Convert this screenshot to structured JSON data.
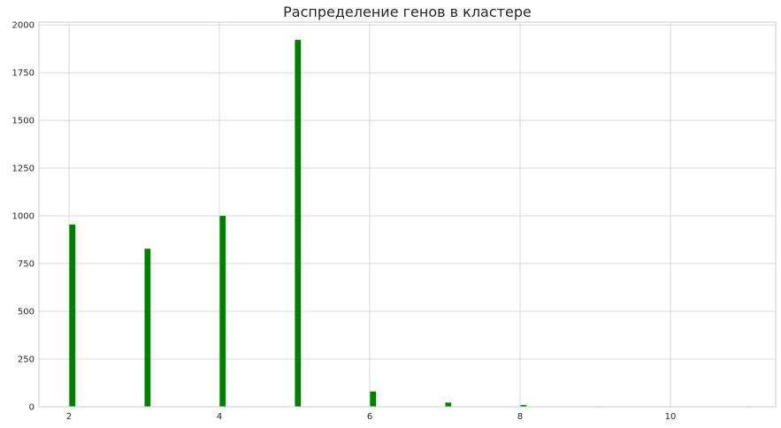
{
  "chart_data": {
    "type": "bar",
    "title": "Распределение генов в кластере",
    "xlabel": "",
    "ylabel": "",
    "xlim": [
      1.6,
      11.4
    ],
    "ylim": [
      0,
      2015
    ],
    "x_ticks": [
      2,
      4,
      6,
      8,
      10
    ],
    "x_tick_labels": [
      "2",
      "4",
      "6",
      "8",
      "10"
    ],
    "y_ticks": [
      0,
      250,
      500,
      750,
      1000,
      1250,
      1500,
      1750,
      2000
    ],
    "y_tick_labels": [
      "0",
      "250",
      "500",
      "750",
      "1000",
      "1250",
      "1500",
      "1750",
      "2000"
    ],
    "grid": true,
    "bar_color": "#008000",
    "grid_color": "#d9d9d9",
    "x": [
      2,
      3,
      4,
      5,
      6,
      7,
      8,
      9,
      10,
      11
    ],
    "values": [
      955,
      828,
      1000,
      1922,
      80,
      22,
      9,
      1,
      0,
      1
    ]
  }
}
